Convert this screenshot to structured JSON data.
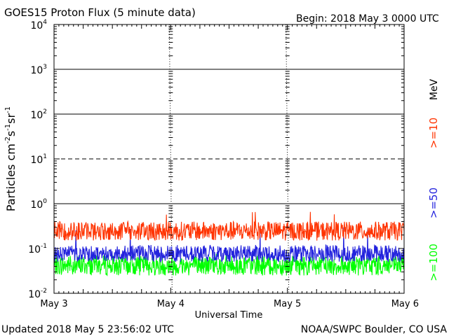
{
  "chart_data": {
    "type": "line",
    "title": "GOES15 Proton Flux (5 minute data)",
    "begin_label": "Begin: 2018 May 3 0000 UTC",
    "xlabel": "Universal Time",
    "ylabel_base": "Particles cm",
    "ylabel_sup1": "-2",
    "ylabel_mid1": "s",
    "ylabel_sup2": "-1",
    "ylabel_mid2": "sr",
    "ylabel_sup3": "-1",
    "y_scale": "log",
    "ylim": [
      0.01,
      10000
    ],
    "y_ticks": [
      {
        "base": "10",
        "exp": "4"
      },
      {
        "base": "10",
        "exp": "3"
      },
      {
        "base": "10",
        "exp": "2"
      },
      {
        "base": "10",
        "exp": "1"
      },
      {
        "base": "10",
        "exp": "0"
      },
      {
        "base": "10",
        "exp": "-1"
      },
      {
        "base": "10",
        "exp": "-2"
      }
    ],
    "x_ticks": [
      "May 3",
      "May 4",
      "May 5",
      "May 6"
    ],
    "xlim": [
      "2018-05-03 00:00",
      "2018-05-06 00:00"
    ],
    "threshold_lines": [
      {
        "value": 1000,
        "style": "solid"
      },
      {
        "value": 100,
        "style": "solid"
      },
      {
        "value": 10,
        "style": "dashed"
      },
      {
        "value": 1,
        "style": "solid"
      }
    ],
    "series": [
      {
        "name": ">=10",
        "color": "#ff3300",
        "typical_range": [
          0.15,
          0.4
        ],
        "peak": 0.7
      },
      {
        "name": ">=50",
        "color": "#2222dd",
        "typical_range": [
          0.05,
          0.12
        ],
        "peak": 0.3
      },
      {
        "name": ">=100",
        "color": "#00ff00",
        "typical_range": [
          0.025,
          0.07
        ],
        "peak": 0.08
      }
    ],
    "energy_unit": "MeV"
  },
  "footer": {
    "updated": "Updated 2018 May  5 23:56:02 UTC",
    "source": "NOAA/SWPC Boulder, CO USA"
  }
}
